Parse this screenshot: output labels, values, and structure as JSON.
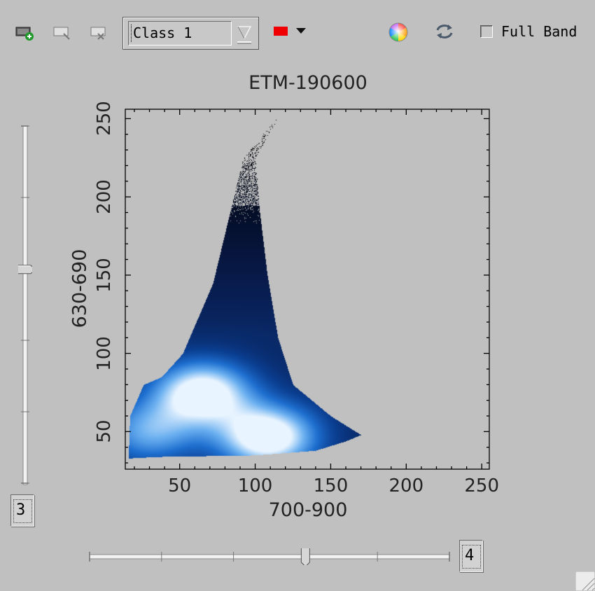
{
  "toolbar": {
    "class_combo": {
      "value": "Class 1"
    },
    "class_color": "#f00000",
    "full_band_label": "Full Band",
    "full_band_checked": false,
    "icons": [
      "add-roi-icon",
      "edit-roi-icon",
      "delete-roi-icon",
      "color-wheel-icon",
      "refresh-icon"
    ]
  },
  "plot": {
    "title": "ETM-190600",
    "xlabel": "700-900",
    "ylabel": "630-690",
    "xticks": [
      "50",
      "100",
      "150",
      "200",
      "250"
    ],
    "yticks": [
      "50",
      "100",
      "150",
      "200",
      "250"
    ]
  },
  "chart_data": {
    "type": "heatmap",
    "title": "ETM-190600",
    "xlabel": "700-900",
    "ylabel": "630-690",
    "xlim": [
      14,
      255
    ],
    "ylim": [
      26,
      256
    ],
    "xticks": [
      50,
      100,
      150,
      200,
      250
    ],
    "yticks": [
      50,
      100,
      150,
      200,
      250
    ],
    "colormap": [
      "#000000",
      "#081a4a",
      "#0a3d8f",
      "#1e6fd0",
      "#6bb0f0",
      "#e8f4ff"
    ],
    "density_peaks": [
      {
        "x": 65,
        "y": 75,
        "intensity": 0.95
      },
      {
        "x": 108,
        "y": 47,
        "intensity": 1.0
      },
      {
        "x": 30,
        "y": 50,
        "intensity": 0.55
      }
    ],
    "envelope": [
      [
        16,
        33
      ],
      [
        35,
        34
      ],
      [
        100,
        35
      ],
      [
        140,
        38
      ],
      [
        160,
        44
      ],
      [
        170,
        48
      ],
      [
        150,
        60
      ],
      [
        125,
        80
      ],
      [
        115,
        110
      ],
      [
        108,
        150
      ],
      [
        103,
        190
      ],
      [
        100,
        225
      ],
      [
        118,
        255
      ],
      [
        92,
        225
      ],
      [
        82,
        185
      ],
      [
        72,
        145
      ],
      [
        52,
        100
      ],
      [
        38,
        85
      ],
      [
        26,
        80
      ],
      [
        17,
        60
      ]
    ]
  },
  "sliders": {
    "vertical": {
      "value": "3",
      "level": 0.6
    },
    "horizontal": {
      "value": "4",
      "level": 0.6
    }
  }
}
